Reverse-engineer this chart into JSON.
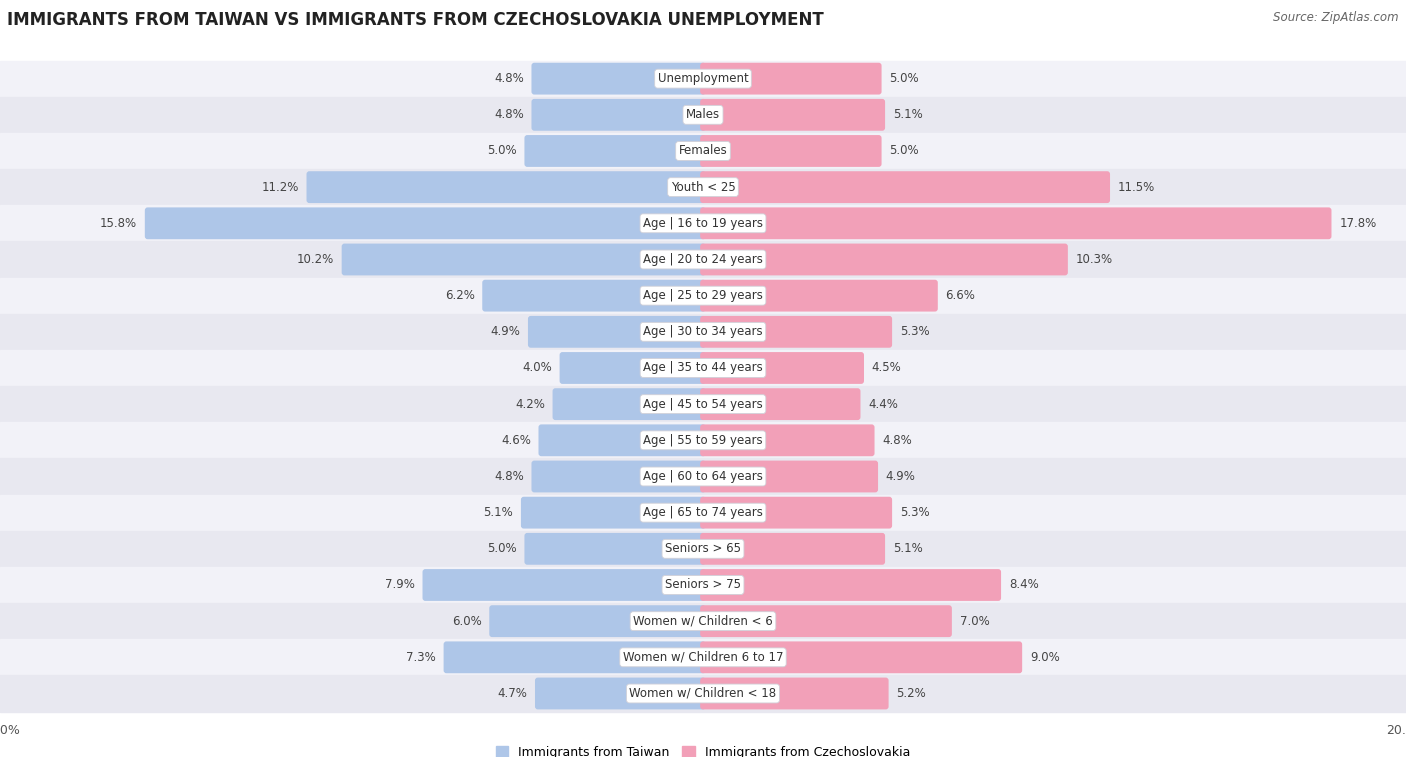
{
  "title": "IMMIGRANTS FROM TAIWAN VS IMMIGRANTS FROM CZECHOSLOVAKIA UNEMPLOYMENT",
  "source": "Source: ZipAtlas.com",
  "categories": [
    "Unemployment",
    "Males",
    "Females",
    "Youth < 25",
    "Age | 16 to 19 years",
    "Age | 20 to 24 years",
    "Age | 25 to 29 years",
    "Age | 30 to 34 years",
    "Age | 35 to 44 years",
    "Age | 45 to 54 years",
    "Age | 55 to 59 years",
    "Age | 60 to 64 years",
    "Age | 65 to 74 years",
    "Seniors > 65",
    "Seniors > 75",
    "Women w/ Children < 6",
    "Women w/ Children 6 to 17",
    "Women w/ Children < 18"
  ],
  "taiwan_values": [
    4.8,
    4.8,
    5.0,
    11.2,
    15.8,
    10.2,
    6.2,
    4.9,
    4.0,
    4.2,
    4.6,
    4.8,
    5.1,
    5.0,
    7.9,
    6.0,
    7.3,
    4.7
  ],
  "czech_values": [
    5.0,
    5.1,
    5.0,
    11.5,
    17.8,
    10.3,
    6.6,
    5.3,
    4.5,
    4.4,
    4.8,
    4.9,
    5.3,
    5.1,
    8.4,
    7.0,
    9.0,
    5.2
  ],
  "taiwan_color": "#aec6e8",
  "czech_color": "#f2a0b8",
  "row_bg_even": "#f2f2f8",
  "row_bg_odd": "#e8e8f0",
  "max_value": 20.0,
  "label_taiwan": "Immigrants from Taiwan",
  "label_czech": "Immigrants from Czechoslovakia",
  "title_fontsize": 12,
  "source_fontsize": 8.5,
  "bar_label_fontsize": 8.5,
  "category_fontsize": 8.5
}
